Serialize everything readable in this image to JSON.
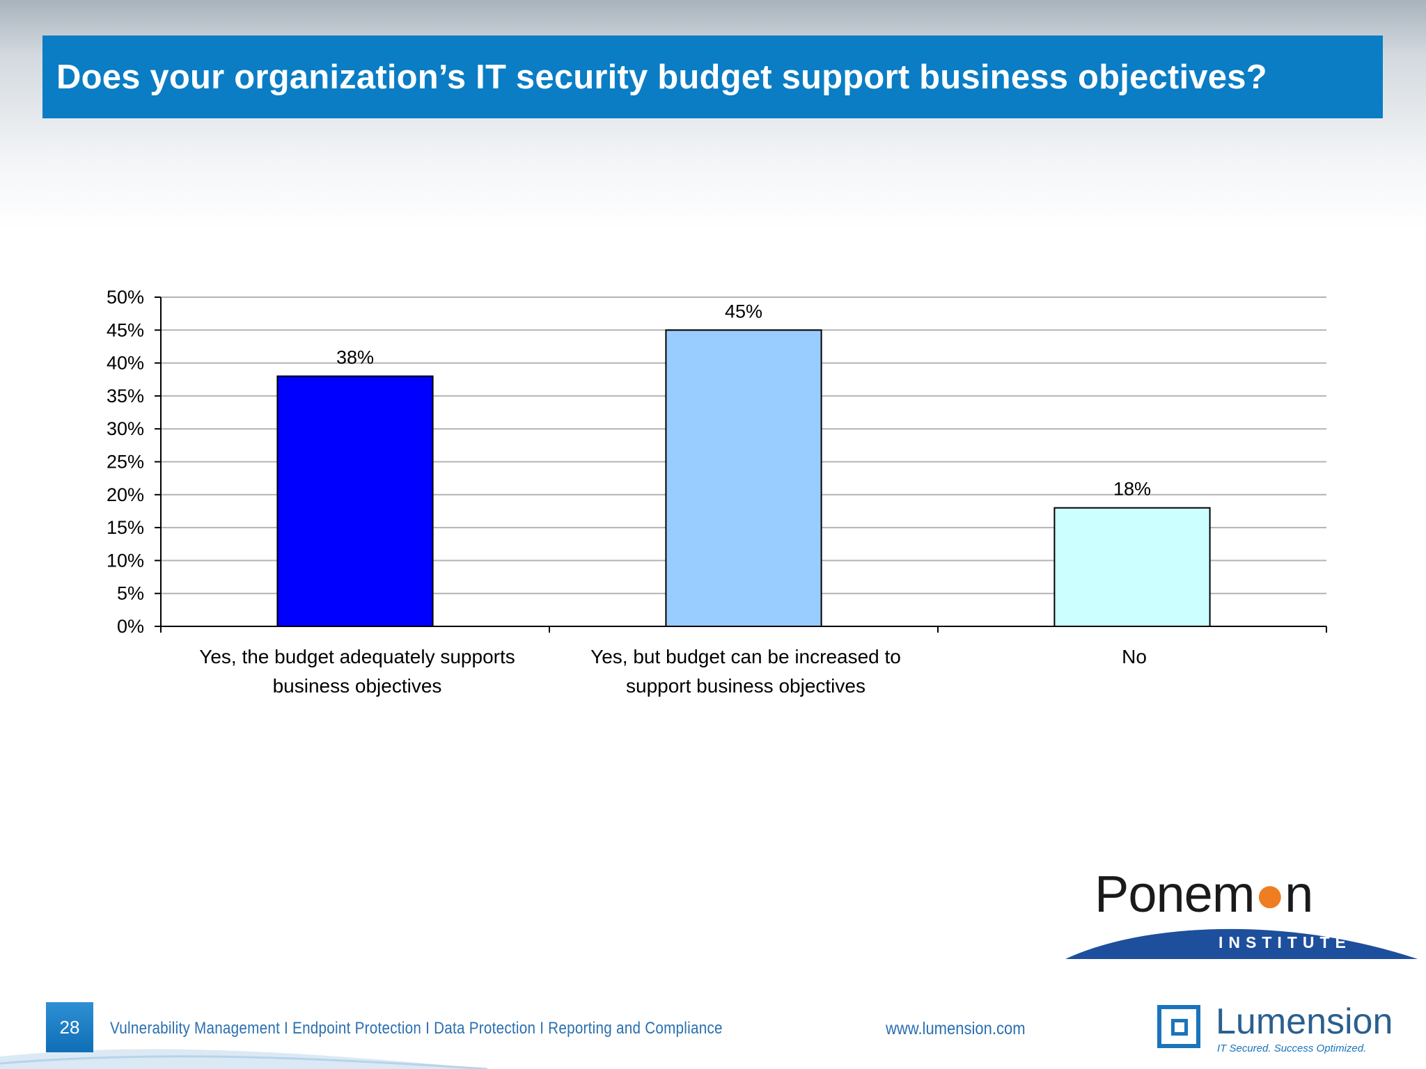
{
  "slide": {
    "title": "Does your organization’s IT security budget support business objectives?",
    "page_number": "28",
    "footer_links": "Vulnerability Management I Endpoint Protection I Data Protection I Reporting and Compliance",
    "footer_url": "www.lumension.com"
  },
  "logos": {
    "ponemon_name": "Ponemon",
    "ponemon_sub": "INSTITUTE",
    "lumension_name": "Lumension",
    "lumension_tagline": "IT Secured. Success Optimized."
  },
  "chart_data": {
    "type": "bar",
    "categories": [
      [
        "Yes, the budget adequately supports",
        "business objectives"
      ],
      [
        "Yes, but budget can be increased to",
        "support business objectives"
      ],
      [
        "No"
      ]
    ],
    "values": [
      38,
      45,
      18
    ],
    "value_labels": [
      "38%",
      "45%",
      "18%"
    ],
    "colors": [
      "#0000ff",
      "#99ccff",
      "#ccffff"
    ],
    "ylim": [
      0,
      50
    ],
    "ytick_step": 5,
    "ytick_labels": [
      "0%",
      "5%",
      "10%",
      "15%",
      "20%",
      "25%",
      "30%",
      "35%",
      "40%",
      "45%",
      "50%"
    ],
    "grid": true,
    "legend": "none"
  }
}
